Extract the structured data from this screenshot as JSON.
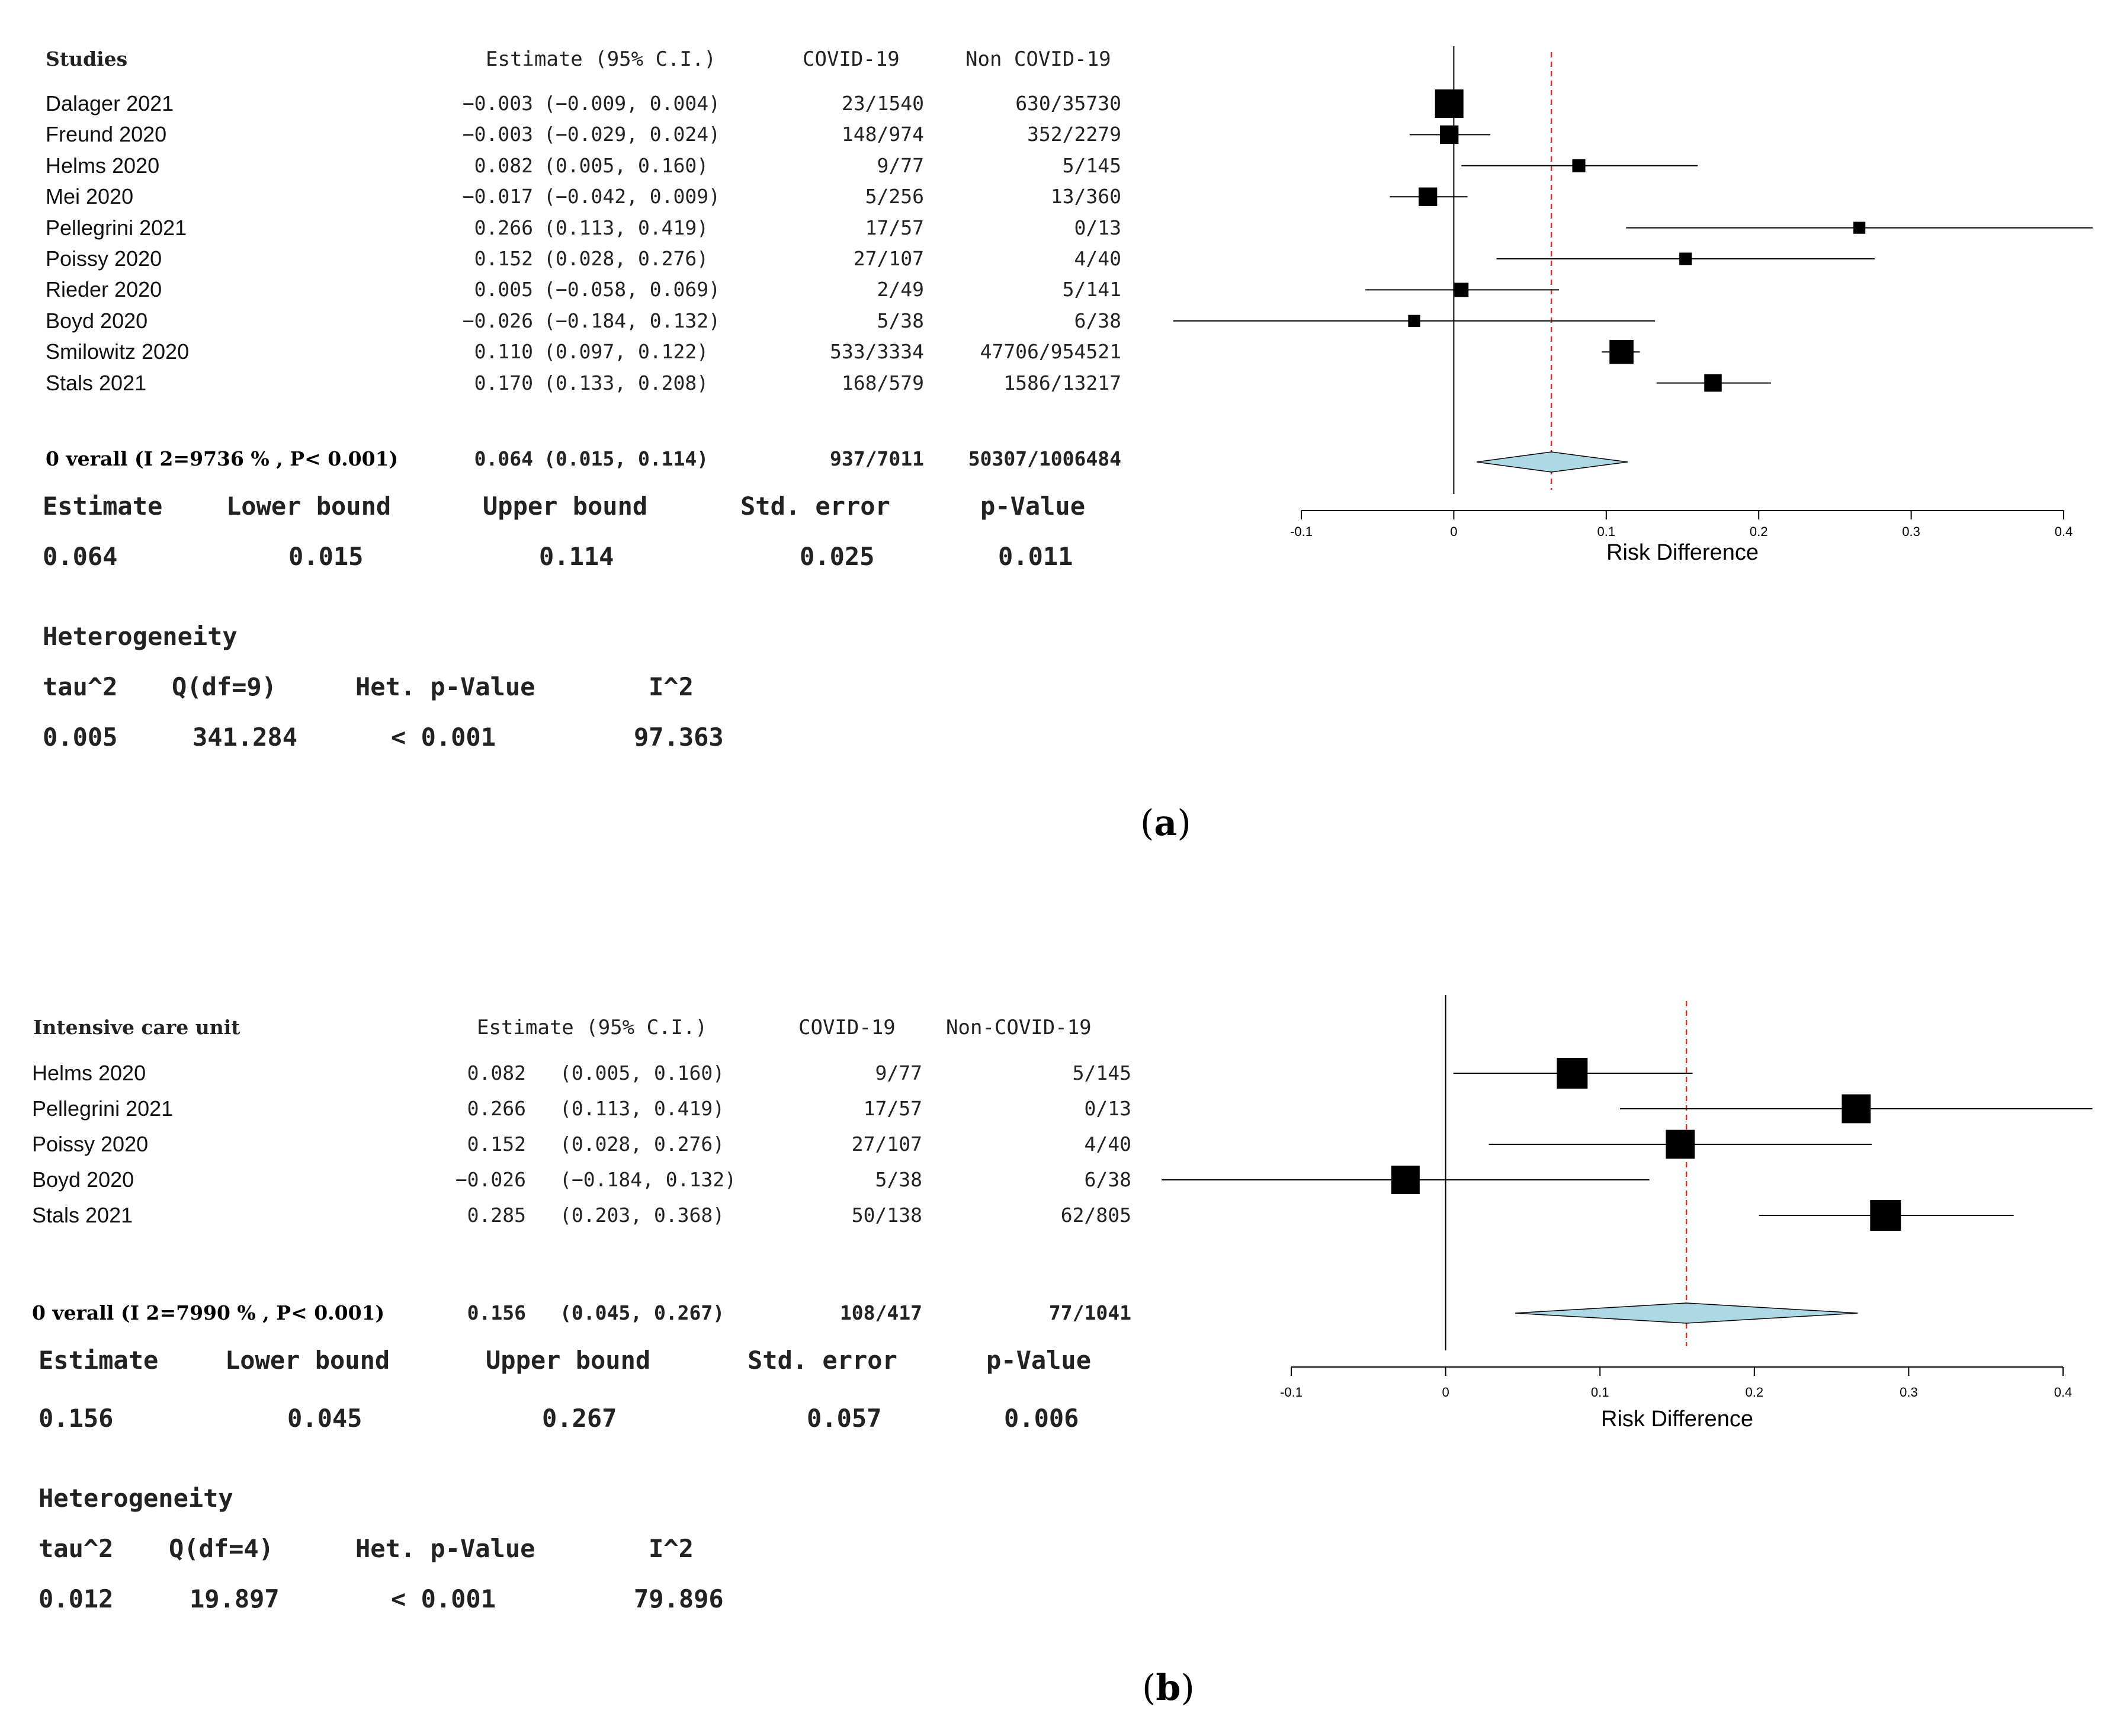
{
  "chart_data": [
    {
      "type": "forest",
      "panel_label": "a",
      "header": {
        "studies": "Studies",
        "estimate": "Estimate (95% C.I.)",
        "covid": "COVID-19",
        "noncovid": "Non COVID-19"
      },
      "xlabel": "Risk Difference",
      "xlim": [
        -0.1,
        0.4
      ],
      "xticks": [
        "-0.1",
        "0",
        "0.1",
        "0.2",
        "0.3",
        "0.4"
      ],
      "reference_line": 0.064,
      "studies": [
        {
          "name": "Dalager 2021",
          "est": -0.003,
          "lo": -0.009,
          "hi": 0.004,
          "est_text": "−0.003",
          "ci_text": "(−0.009, 0.004)",
          "covid": "23/1540",
          "noncovid": "630/35730",
          "weight": 1.0
        },
        {
          "name": "Freund 2020",
          "est": -0.003,
          "lo": -0.029,
          "hi": 0.024,
          "est_text": "−0.003",
          "ci_text": "(−0.029, 0.024)",
          "covid": "148/974",
          "noncovid": "352/2279",
          "weight": 0.55
        },
        {
          "name": "Helms 2020",
          "est": 0.082,
          "lo": 0.005,
          "hi": 0.16,
          "est_text": "0.082",
          "ci_text": "(0.005, 0.160)",
          "covid": "9/77",
          "noncovid": "5/145",
          "weight": 0.3
        },
        {
          "name": "Mei 2020",
          "est": -0.017,
          "lo": -0.042,
          "hi": 0.009,
          "est_text": "−0.017",
          "ci_text": "(−0.042, 0.009)",
          "covid": "5/256",
          "noncovid": "13/360",
          "weight": 0.55
        },
        {
          "name": "Pellegrini 2021",
          "est": 0.266,
          "lo": 0.113,
          "hi": 0.419,
          "est_text": "0.266",
          "ci_text": "(0.113, 0.419)",
          "covid": "17/57",
          "noncovid": "0/13",
          "weight": 0.25
        },
        {
          "name": "Poissy 2020",
          "est": 0.152,
          "lo": 0.028,
          "hi": 0.276,
          "est_text": "0.152",
          "ci_text": "(0.028, 0.276)",
          "covid": "27/107",
          "noncovid": "4/40",
          "weight": 0.27
        },
        {
          "name": "Rieder 2020",
          "est": 0.005,
          "lo": -0.058,
          "hi": 0.069,
          "est_text": "0.005",
          "ci_text": "(−0.058, 0.069)",
          "covid": "2/49",
          "noncovid": "5/141",
          "weight": 0.35
        },
        {
          "name": "Boyd  2020",
          "est": -0.026,
          "lo": -0.184,
          "hi": 0.132,
          "est_text": "−0.026",
          "ci_text": "(−0.184, 0.132)",
          "covid": "5/38",
          "noncovid": "6/38",
          "weight": 0.25
        },
        {
          "name": "Smilowitz 2020",
          "est": 0.11,
          "lo": 0.097,
          "hi": 0.122,
          "est_text": "0.110",
          "ci_text": "(0.097, 0.122)",
          "covid": "533/3334",
          "noncovid": "47706/954521",
          "weight": 0.8
        },
        {
          "name": "Stals 2021",
          "est": 0.17,
          "lo": 0.133,
          "hi": 0.208,
          "est_text": "0.170",
          "ci_text": "(0.133, 0.208)",
          "covid": "168/579",
          "noncovid": "1586/13217",
          "weight": 0.5
        }
      ],
      "overall": {
        "label": "0 verall (Ι 2=9736 % , P< 0.001)",
        "est": 0.064,
        "lo": 0.015,
        "hi": 0.114,
        "est_text": "0.064",
        "ci_text": "(0.015, 0.114)",
        "covid": "937/7011",
        "noncovid": "50307/1006484"
      },
      "summary_headers": [
        "Estimate",
        "Lower bound",
        "Upper bound",
        "Std. error",
        "p-Value"
      ],
      "summary_values": [
        "0.064",
        "0.015",
        "0.114",
        "0.025",
        "0.011"
      ],
      "heterogeneity_title": "Heterogeneity",
      "heterogeneity_headers": [
        "tau^2",
        "Q(df=9)",
        "Het. p-Value",
        "I^2"
      ],
      "heterogeneity_values": [
        "0.005",
        "341.284",
        "< 0.001",
        "97.363"
      ],
      "caption": "a"
    },
    {
      "type": "forest",
      "panel_label": "b",
      "header": {
        "studies": "Intensive care unit",
        "estimate": "Estimate (95% C.I.)",
        "covid": "COVID-19",
        "noncovid": "Non-COVID-19"
      },
      "xlabel": "Risk Difference",
      "xlim": [
        -0.1,
        0.4
      ],
      "xticks": [
        "-0.1",
        "0",
        "0.1",
        "0.2",
        "0.3",
        "0.4"
      ],
      "reference_line": 0.156,
      "studies": [
        {
          "name": "Helms 2020",
          "est": 0.082,
          "lo": 0.005,
          "hi": 0.16,
          "est_text": "0.082",
          "ci_text": "(0.005, 0.160)",
          "covid": "9/77",
          "noncovid": "5/145",
          "weight": 1.0
        },
        {
          "name": "Pellegrini 2021",
          "est": 0.266,
          "lo": 0.113,
          "hi": 0.419,
          "est_text": "0.266",
          "ci_text": "(0.113, 0.419)",
          "covid": "17/57",
          "noncovid": "0/13",
          "weight": 0.8
        },
        {
          "name": "Poissy 2020",
          "est": 0.152,
          "lo": 0.028,
          "hi": 0.276,
          "est_text": "0.152",
          "ci_text": "(0.028, 0.276)",
          "covid": "27/107",
          "noncovid": "4/40",
          "weight": 0.8
        },
        {
          "name": "Boyd  2020",
          "est": -0.026,
          "lo": -0.184,
          "hi": 0.132,
          "est_text": "−0.026",
          "ci_text": "(−0.184, 0.132)",
          "covid": "5/38",
          "noncovid": "6/38",
          "weight": 0.75
        },
        {
          "name": "Stals 2021",
          "est": 0.285,
          "lo": 0.203,
          "hi": 0.368,
          "est_text": "0.285",
          "ci_text": "(0.203, 0.368)",
          "covid": "50/138",
          "noncovid": "62/805",
          "weight": 1.0
        }
      ],
      "overall": {
        "label": "0 verall (Ι 2=7990 % , P< 0.001)",
        "est": 0.156,
        "lo": 0.045,
        "hi": 0.267,
        "est_text": "0.156",
        "ci_text": "(0.045, 0.267)",
        "covid": "108/417",
        "noncovid": "77/1041"
      },
      "summary_headers": [
        "Estimate",
        "Lower bound",
        "Upper bound",
        "Std. error",
        "p-Value"
      ],
      "summary_values": [
        "0.156",
        "0.045",
        "0.267",
        "0.057",
        "0.006"
      ],
      "heterogeneity_title": "Heterogeneity",
      "heterogeneity_headers": [
        "tau^2",
        "Q(df=4)",
        "Het. p-Value",
        "I^2"
      ],
      "heterogeneity_values": [
        "0.012",
        "19.897",
        "< 0.001",
        "79.896"
      ],
      "caption": "b"
    }
  ],
  "colors": {
    "diamond_fill": "#add8e6",
    "reference_line": "#c0392b",
    "marks": "#000000"
  }
}
